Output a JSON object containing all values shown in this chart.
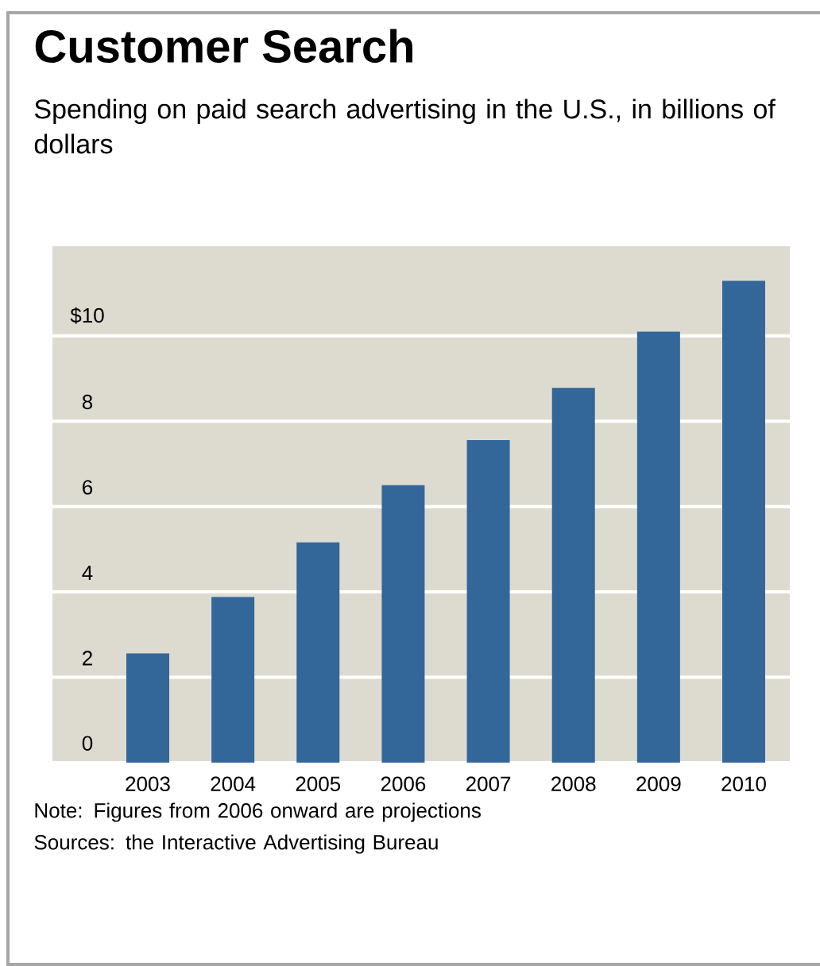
{
  "chart_data": {
    "type": "bar",
    "title": "Customer Search",
    "subtitle": "Spending on paid search advertising in the U.S., in billions of dollars",
    "categories": [
      "2003",
      "2004",
      "2005",
      "2006",
      "2007",
      "2008",
      "2009",
      "2010"
    ],
    "values": [
      2.56,
      3.88,
      5.16,
      6.5,
      7.56,
      8.78,
      10.1,
      11.29
    ],
    "color": "#336699",
    "ylim": [
      0,
      12.1
    ],
    "yticks": [
      0,
      2,
      4,
      6,
      8,
      {
        "value": 10,
        "label": "$10"
      }
    ],
    "grid": "y",
    "annotations": [
      "Note: Figures from 2006 onward are projections",
      "Sources: the Interactive Advertising Bureau"
    ]
  }
}
